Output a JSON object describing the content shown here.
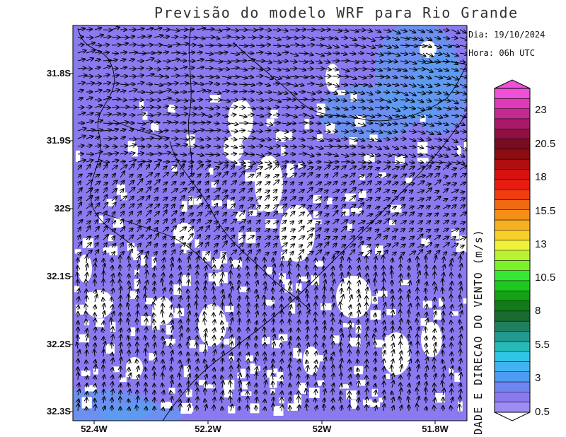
{
  "title": "Previsão do modelo WRF para Rio Grande",
  "info": {
    "date": "Dia: 19/10/2024",
    "hour": "Hora: 06h UTC"
  },
  "colorbar": {
    "title": "DADE E DIRECAO DO VENTO (m/s)",
    "labels": [
      "23",
      "20.5",
      "18",
      "15.5",
      "13",
      "10.5",
      "8",
      "5.5",
      "3",
      "0.5"
    ]
  },
  "lat_labels": [
    "31.8S",
    "31.9S",
    "32S",
    "32.1S",
    "32.2S",
    "32.3S"
  ],
  "lon_labels": [
    "52.4W",
    "52.2W",
    "52W",
    "51.8W"
  ],
  "colors": {
    "low_wind": "#8a7af0",
    "mid_wind": "#54a2f0",
    "calm": "#ffffff"
  }
}
